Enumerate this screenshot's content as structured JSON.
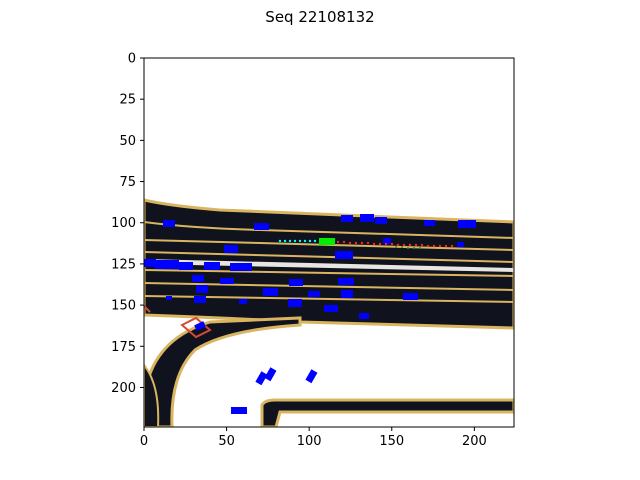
{
  "figure": {
    "title": "Seq 22108132"
  },
  "axes": {
    "xlim": [
      0,
      224
    ],
    "ylim": [
      224,
      0
    ],
    "x_ticks": [
      0,
      50,
      100,
      150,
      200
    ],
    "y_ticks": [
      0,
      25,
      50,
      75,
      100,
      125,
      150,
      175,
      200
    ]
  },
  "colors": {
    "road": "#10121e",
    "lane_line": "#d9b560",
    "vehicle": "#0000ff",
    "ego": "#00ee00",
    "history": "#00ffff",
    "prediction": "#ff2020",
    "ground_truth": "#ff2020",
    "crosswalk": "#d24a3a",
    "background": "#ffffff"
  }
}
